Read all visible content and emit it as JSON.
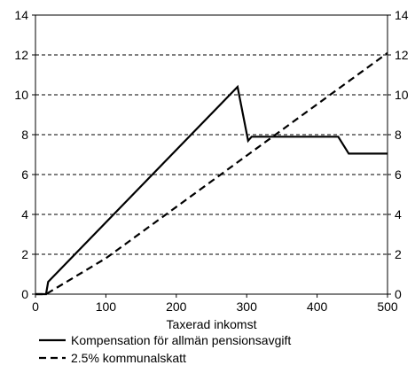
{
  "chart_data": {
    "type": "line",
    "title": "",
    "xlabel": "Taxerad inkomst",
    "ylabel": "",
    "xlim": [
      0,
      500
    ],
    "ylim": [
      0,
      14
    ],
    "x_ticks": [
      0,
      100,
      200,
      300,
      400,
      500
    ],
    "y_ticks": [
      0,
      2,
      4,
      6,
      8,
      10,
      12,
      14
    ],
    "grid": "horizontal dashed",
    "right_axis": true,
    "legend_position": "below",
    "series": [
      {
        "name": "Kompensation för allmän pensionsavgift",
        "style": "solid",
        "color": "#000000",
        "x": [
          0,
          15,
          18,
          287,
          302,
          307,
          430,
          445,
          500
        ],
        "y": [
          0,
          0,
          0.62,
          10.4,
          7.7,
          7.9,
          7.9,
          7.05,
          7.05
        ]
      },
      {
        "name": "2.5% kommunalskatt",
        "style": "dashed",
        "color": "#000000",
        "x": [
          0,
          15,
          100,
          500
        ],
        "y": [
          0,
          0,
          1.8,
          12.1
        ]
      }
    ]
  }
}
